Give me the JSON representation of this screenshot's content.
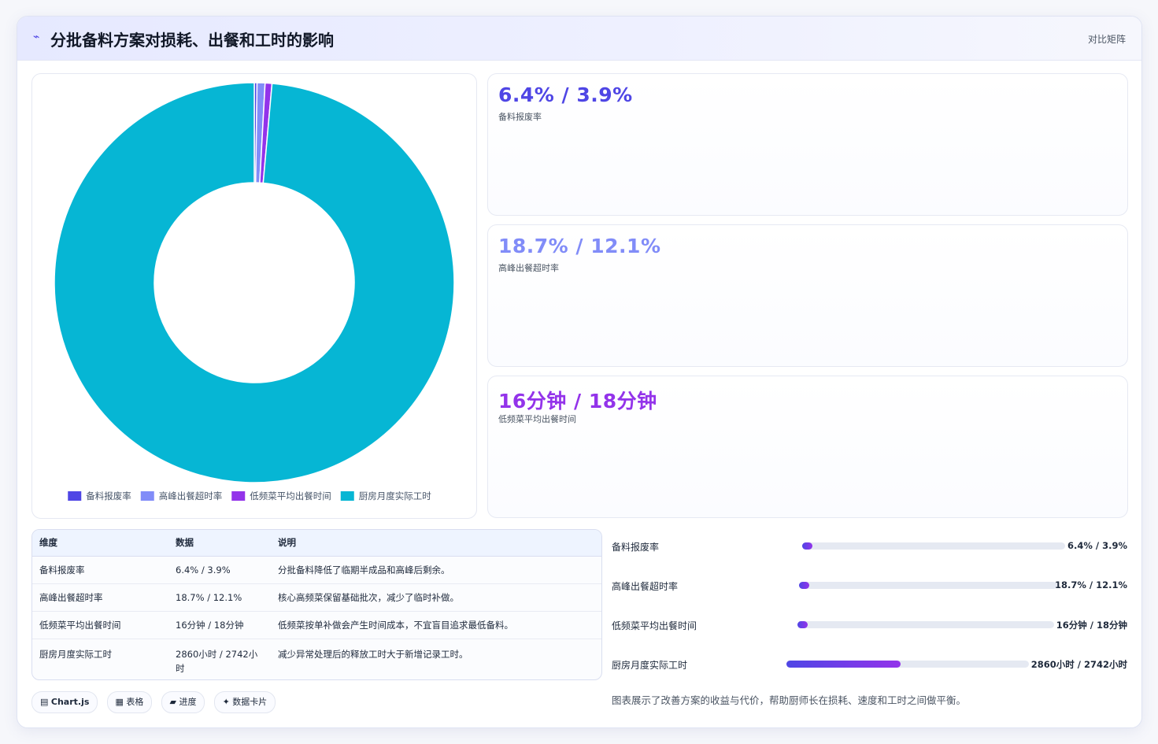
{
  "header": {
    "title": "分批备料方案对损耗、出餐和工时的影响",
    "matrix_link": "对比矩阵"
  },
  "chart_data": {
    "type": "pie",
    "variant": "doughnut",
    "categories": [
      "备料报废率",
      "高峰出餐超时率",
      "低频菜平均出餐时间",
      "厨房月度实际工时"
    ],
    "values": [
      6.4,
      18.7,
      16,
      2860
    ],
    "colors": [
      "#4f46e5",
      "#818cf8",
      "#9333ea",
      "#06b6d4"
    ],
    "legend_position": "bottom",
    "title": ""
  },
  "kpis": [
    {
      "value": "6.4% / 3.9%",
      "label": "备料报废率",
      "color": "#4f46e5"
    },
    {
      "value": "18.7% / 12.1%",
      "label": "高峰出餐超时率",
      "color": "#818cf8"
    },
    {
      "value": "16分钟 / 18分钟",
      "label": "低频菜平均出餐时间",
      "color": "#9333ea"
    }
  ],
  "table": {
    "headers": [
      "维度",
      "数据",
      "说明"
    ],
    "rows": [
      [
        "备料报废率",
        "6.4% / 3.9%",
        "分批备料降低了临期半成品和高峰后剩余。"
      ],
      [
        "高峰出餐超时率",
        "18.7% / 12.1%",
        "核心高频菜保留基础批次，减少了临时补做。"
      ],
      [
        "低频菜平均出餐时间",
        "16分钟 / 18分钟",
        "低频菜按单补做会产生时间成本，不宜盲目追求最低备料。"
      ],
      [
        "厨房月度实际工时",
        "2860小时 / 2742小时",
        "减少异常处理后的释放工时大于新增记录工时。"
      ]
    ]
  },
  "chips": [
    {
      "icon": "▤",
      "label": "Chart.js"
    },
    {
      "icon": "▦",
      "label": "表格"
    },
    {
      "icon": "▰",
      "label": "进度"
    },
    {
      "icon": "✦",
      "label": "数据卡片"
    }
  ],
  "progress": [
    {
      "label": "备料报废率",
      "value": "6.4% / 3.9%",
      "fill": 0.03
    },
    {
      "label": "高峰出餐超时率",
      "value": "18.7% / 12.1%",
      "fill": 0.03
    },
    {
      "label": "低频菜平均出餐时间",
      "value": "16分钟 / 18分钟",
      "fill": 0.03
    },
    {
      "label": "厨房月度实际工时",
      "value": "2860小时 / 2742小时",
      "fill": 0.47
    }
  ],
  "caption": "图表展示了改善方案的收益与代价，帮助厨师长在损耗、速度和工时之间做平衡。"
}
